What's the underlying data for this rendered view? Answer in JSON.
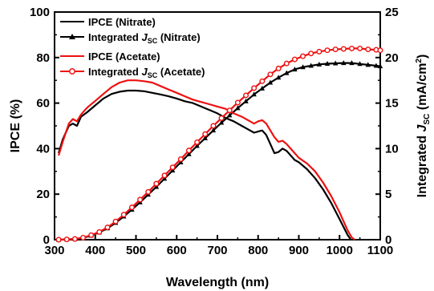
{
  "chart_data": {
    "type": "line",
    "xlabel": "Wavelength (nm)",
    "ylabel": "IPCE (%)",
    "y2label": {
      "prefix": "Integrated ",
      "italic": "J",
      "sub": "SC",
      "suffix": " (mA/cm",
      "sup": "2",
      "end": ")"
    },
    "xlim": [
      300,
      1100
    ],
    "ylim": [
      0,
      100
    ],
    "y2lim": [
      0,
      25
    ],
    "xticks": [
      "300",
      "400",
      "500",
      "600",
      "700",
      "800",
      "900",
      "1000",
      "1100"
    ],
    "yticks": [
      "0",
      "20",
      "40",
      "60",
      "80",
      "100"
    ],
    "y2ticks": [
      "0",
      "5",
      "10",
      "15",
      "20",
      "25"
    ],
    "grid": false,
    "legend_position": "top-left",
    "legend": [
      {
        "label": "IPCE (Nitrate)",
        "color": "#000000",
        "marker": "none"
      },
      {
        "label_prefix": "Integrated ",
        "label_italic": "J",
        "label_sub": "SC",
        "label_suffix": " (Nitrate)",
        "color": "#000000",
        "marker": "triangle"
      },
      {
        "label": "IPCE (Acetate)",
        "color": "#ee1111",
        "marker": "none"
      },
      {
        "label_prefix": "Integrated ",
        "label_italic": "J",
        "label_sub": "SC",
        "label_suffix": " (Acetate)",
        "color": "#ee1111",
        "marker": "circle"
      }
    ],
    "series": [
      {
        "name": "IPCE (Nitrate)",
        "axis": "left",
        "color": "#000000",
        "marker": "none",
        "x": [
          310,
          320,
          335,
          345,
          355,
          365,
          380,
          400,
          420,
          440,
          460,
          480,
          500,
          520,
          540,
          560,
          580,
          600,
          620,
          640,
          660,
          680,
          700,
          720,
          740,
          760,
          780,
          790,
          800,
          810,
          820,
          830,
          840,
          850,
          860,
          870,
          880,
          890,
          900,
          920,
          940,
          960,
          980,
          1000,
          1020,
          1028
        ],
        "y": [
          38,
          44,
          50,
          51,
          50,
          54,
          56,
          59,
          62,
          64,
          65,
          65.5,
          65.5,
          65.2,
          64.5,
          63.8,
          63,
          62,
          60.8,
          60,
          58.5,
          57,
          55.5,
          53.5,
          52,
          50,
          48,
          47,
          47.5,
          48,
          46,
          42,
          38,
          38.5,
          40,
          39,
          37,
          35,
          34,
          31,
          27,
          22,
          16,
          9,
          2,
          0
        ]
      },
      {
        "name": "Integrated Jsc (Nitrate)",
        "axis": "right",
        "color": "#000000",
        "marker": "triangle",
        "x": [
          310,
          330,
          350,
          370,
          390,
          410,
          430,
          450,
          470,
          490,
          510,
          530,
          550,
          570,
          590,
          610,
          630,
          650,
          670,
          690,
          710,
          730,
          750,
          770,
          790,
          810,
          830,
          850,
          870,
          890,
          910,
          930,
          950,
          970,
          990,
          1010,
          1030,
          1050,
          1070,
          1090,
          1100
        ],
        "y": [
          0,
          0.03,
          0.08,
          0.2,
          0.45,
          0.8,
          1.25,
          1.85,
          2.55,
          3.3,
          4.1,
          4.95,
          5.8,
          6.7,
          7.6,
          8.5,
          9.4,
          10.3,
          11.15,
          12.0,
          12.85,
          13.65,
          14.45,
          15.2,
          15.95,
          16.6,
          17.25,
          17.8,
          18.3,
          18.7,
          18.95,
          19.1,
          19.25,
          19.32,
          19.37,
          19.4,
          19.4,
          19.3,
          19.2,
          19.1,
          19.05
        ]
      },
      {
        "name": "IPCE (Acetate)",
        "axis": "left",
        "color": "#ee1111",
        "marker": "none",
        "x": [
          310,
          320,
          335,
          345,
          355,
          365,
          380,
          400,
          420,
          440,
          460,
          480,
          500,
          520,
          540,
          560,
          580,
          600,
          620,
          640,
          660,
          680,
          700,
          720,
          740,
          760,
          780,
          790,
          800,
          810,
          820,
          830,
          840,
          850,
          860,
          870,
          880,
          890,
          900,
          920,
          940,
          960,
          980,
          1000,
          1020,
          1030,
          1037
        ],
        "y": [
          37,
          43,
          51,
          53,
          52,
          55,
          58,
          61,
          64,
          67,
          69,
          70,
          70,
          69.6,
          69,
          67.5,
          66,
          64.5,
          63,
          61.5,
          60.5,
          59.5,
          58.5,
          57.5,
          55.5,
          54,
          52,
          51,
          52,
          52.5,
          51,
          48,
          45,
          43,
          43.5,
          42,
          40,
          38,
          36,
          33.5,
          30,
          25,
          19,
          12,
          4,
          1,
          0
        ]
      },
      {
        "name": "Integrated Jsc (Acetate)",
        "axis": "right",
        "color": "#ee1111",
        "marker": "circle",
        "x": [
          310,
          330,
          350,
          370,
          390,
          410,
          430,
          450,
          470,
          490,
          510,
          530,
          550,
          570,
          590,
          610,
          630,
          650,
          670,
          690,
          710,
          730,
          750,
          770,
          790,
          810,
          830,
          850,
          870,
          890,
          910,
          930,
          950,
          970,
          990,
          1010,
          1030,
          1050,
          1070,
          1090,
          1100
        ],
        "y": [
          0,
          0.03,
          0.08,
          0.22,
          0.5,
          0.85,
          1.35,
          2.0,
          2.75,
          3.55,
          4.4,
          5.25,
          6.15,
          7.05,
          7.95,
          8.85,
          9.8,
          10.7,
          11.6,
          12.5,
          13.35,
          14.2,
          15.05,
          15.85,
          16.65,
          17.4,
          18.15,
          18.8,
          19.35,
          19.8,
          20.15,
          20.45,
          20.65,
          20.8,
          20.9,
          20.95,
          21.0,
          21.0,
          20.9,
          20.85,
          20.8
        ]
      }
    ]
  }
}
